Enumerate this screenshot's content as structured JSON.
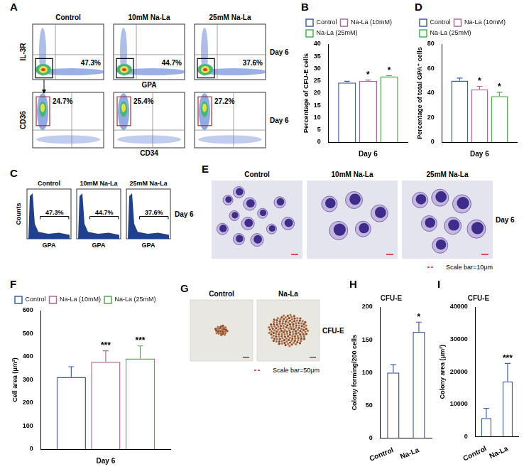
{
  "chart_data": [
    {
      "panel": "A",
      "type": "flowplot",
      "columns": [
        "Control",
        "10mM Na-La",
        "25mM Na-La"
      ],
      "row_label": "Day 6",
      "rows": [
        {
          "ylabel": "IL-3R",
          "xlabel": "GPA",
          "gates": [
            "47.3%",
            "44.7%",
            "37.6%"
          ]
        },
        {
          "ylabel": "CD36",
          "xlabel": "CD34",
          "gates": [
            "24.7%",
            "25.4%",
            "27.2%"
          ]
        }
      ]
    },
    {
      "panel": "B",
      "type": "bar",
      "ylabel": "Percentage of CFU-E cells",
      "categories": [
        "Day 6"
      ],
      "series": [
        {
          "name": "Control",
          "color": "#3f5fa9",
          "values": [
            24.3
          ],
          "errors": [
            0.5
          ]
        },
        {
          "name": "Na-La (10mM)",
          "color": "#b5669a",
          "values": [
            25.0
          ],
          "errors": [
            0.3
          ],
          "annotations": [
            "*"
          ]
        },
        {
          "name": "Na-La (25mM)",
          "color": "#4bb04f",
          "values": [
            26.8
          ],
          "errors": [
            0.3
          ],
          "annotations": [
            "*"
          ]
        }
      ],
      "ylim": [
        0,
        40
      ],
      "yticks": [
        0,
        5,
        10,
        15,
        20,
        25,
        30,
        35,
        40
      ],
      "legend": "top",
      "grid": false
    },
    {
      "panel": "C",
      "type": "flowhist",
      "columns": [
        "Control",
        "10mM Na-La",
        "25mM Na-La"
      ],
      "row_label": "Day 6",
      "ylabel": "Counts",
      "xlabel": "GPA",
      "gates": [
        "47.3%",
        "44.7%",
        "37.6%"
      ]
    },
    {
      "panel": "D",
      "type": "bar",
      "ylabel": "Percentage of total GPA⁺ cells",
      "categories": [
        "Day 6"
      ],
      "series": [
        {
          "name": "Control",
          "color": "#3f5fa9",
          "values": [
            50.2
          ],
          "errors": [
            2.0
          ]
        },
        {
          "name": "Na-La (10mM)",
          "color": "#b5669a",
          "values": [
            43.0
          ],
          "errors": [
            2.5
          ],
          "annotations": [
            "*"
          ]
        },
        {
          "name": "Na-La (25mM)",
          "color": "#4bb04f",
          "values": [
            37.6
          ],
          "errors": [
            3.0
          ],
          "annotations": [
            "*"
          ]
        }
      ],
      "ylim": [
        0,
        80
      ],
      "yticks": [
        0,
        20,
        40,
        60,
        80
      ],
      "legend": "top",
      "grid": false
    },
    {
      "panel": "E",
      "type": "micrograph",
      "columns": [
        "Control",
        "10mM Na-La",
        "25mM Na-La"
      ],
      "row_label": "Day 6",
      "scale_bar": "Scale bar=10μm"
    },
    {
      "panel": "F",
      "type": "bar",
      "ylabel": "Cell area (μm²)",
      "categories": [
        "Day 6"
      ],
      "series": [
        {
          "name": "Control",
          "color": "#3f5fa9",
          "values": [
            312
          ],
          "errors": [
            45
          ]
        },
        {
          "name": "Na-La (10mM)",
          "color": "#b5669a",
          "values": [
            378
          ],
          "errors": [
            48
          ],
          "annotations": [
            "***"
          ]
        },
        {
          "name": "Na-La (25mM)",
          "color": "#4bb04f",
          "values": [
            392
          ],
          "errors": [
            55
          ],
          "annotations": [
            "***"
          ]
        }
      ],
      "ylim": [
        0,
        600
      ],
      "yticks": [
        0,
        100,
        200,
        300,
        400,
        500,
        600
      ],
      "legend": "top",
      "grid": false
    },
    {
      "panel": "G",
      "type": "colonies",
      "columns": [
        "Control",
        "Na-La"
      ],
      "row_label": "CFU-E",
      "scale_bar": "Scale bar=50μm"
    },
    {
      "panel": "H",
      "type": "bar",
      "title": "CFU-E",
      "ylabel": "Colony forming/200 cells",
      "categories": [
        "Control",
        "Na-La"
      ],
      "values": [
        100,
        162
      ],
      "errors": [
        12,
        15
      ],
      "annotations": [
        null,
        "*"
      ],
      "color": "#3f5fa9",
      "ylim": [
        0,
        200
      ],
      "yticks": [
        0,
        50,
        100,
        150,
        200
      ],
      "grid": false
    },
    {
      "panel": "I",
      "type": "bar",
      "title": "CFU-E",
      "ylabel": "Colony area (μm²)",
      "categories": [
        "Control",
        "Na-La"
      ],
      "values": [
        5700,
        17000
      ],
      "errors": [
        3000,
        5600
      ],
      "annotations": [
        null,
        "***"
      ],
      "color": "#3f5fa9",
      "ylim": [
        0,
        40000
      ],
      "yticks": [
        0,
        10000,
        20000,
        30000,
        40000
      ],
      "grid": false
    }
  ]
}
